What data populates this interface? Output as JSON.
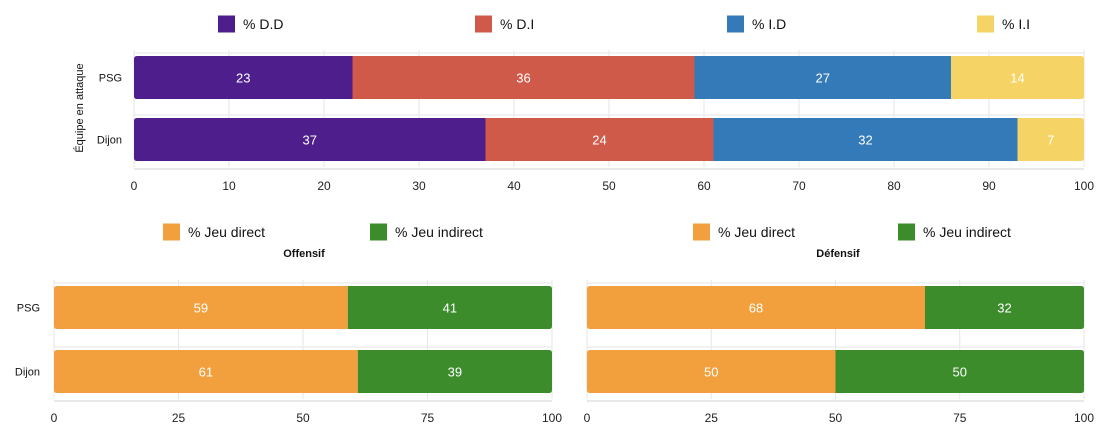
{
  "chart_data": [
    {
      "type": "bar",
      "orientation": "horizontal",
      "stacked": true,
      "categories": [
        "PSG",
        "Dijon"
      ],
      "ylabel": "Équipe en attaque",
      "xlim": [
        0,
        100
      ],
      "xticks": [
        "0",
        "10",
        "20",
        "30",
        "40",
        "50",
        "60",
        "70",
        "80",
        "90",
        "100"
      ],
      "legend_position": "top",
      "series": [
        {
          "name": "% D.D",
          "color": "#4e1f8c",
          "values": [
            23,
            37
          ],
          "labels": [
            "23",
            "37"
          ]
        },
        {
          "name": "% D.I",
          "color": "#d05a4a",
          "values": [
            36,
            24
          ],
          "labels": [
            "36",
            "24"
          ]
        },
        {
          "name": "% I.D",
          "color": "#3479b8",
          "values": [
            27,
            32
          ],
          "labels": [
            "27",
            "32"
          ]
        },
        {
          "name": "% I.I",
          "color": "#f6d365",
          "values": [
            14,
            7
          ],
          "labels": [
            "14",
            "7"
          ]
        }
      ]
    },
    {
      "type": "bar",
      "orientation": "horizontal",
      "stacked": true,
      "title": "Offensif",
      "categories": [
        "PSG",
        "Dijon"
      ],
      "xlim": [
        0,
        100
      ],
      "xticks": [
        "0",
        "25",
        "50",
        "75",
        "100"
      ],
      "legend_position": "top",
      "series": [
        {
          "name": "% Jeu direct",
          "color": "#f2a03d",
          "values": [
            59,
            61
          ],
          "labels": [
            "59",
            "61"
          ]
        },
        {
          "name": "% Jeu indirect",
          "color": "#3c8c2c",
          "values": [
            41,
            39
          ],
          "labels": [
            "41",
            "39"
          ]
        }
      ]
    },
    {
      "type": "bar",
      "orientation": "horizontal",
      "stacked": true,
      "title": "Défensif",
      "categories": [
        "PSG",
        "Dijon"
      ],
      "xlim": [
        0,
        100
      ],
      "xticks": [
        "0",
        "25",
        "50",
        "75",
        "100"
      ],
      "legend_position": "top",
      "series": [
        {
          "name": "% Jeu direct",
          "color": "#f2a03d",
          "values": [
            68,
            50
          ],
          "labels": [
            "68",
            "50"
          ]
        },
        {
          "name": "% Jeu indirect",
          "color": "#3c8c2c",
          "values": [
            32,
            50
          ],
          "labels": [
            "32",
            "50"
          ]
        }
      ]
    }
  ]
}
